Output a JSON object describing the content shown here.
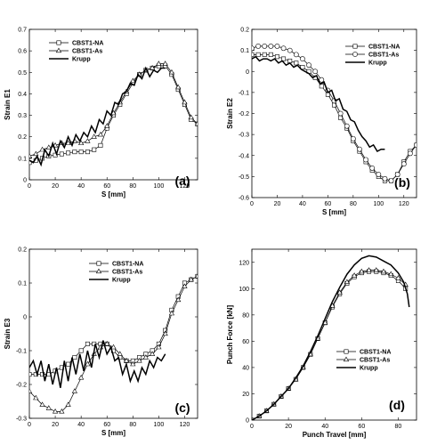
{
  "chart_data": [
    {
      "type": "line",
      "panel_label": "(a)",
      "xlabel": "S [mm]",
      "ylabel": "Strain E1",
      "xlim": [
        0,
        130
      ],
      "ylim": [
        0,
        0.7
      ],
      "xticks": [
        0,
        20,
        40,
        60,
        80,
        100,
        120
      ],
      "yticks": [
        0,
        0.1,
        0.2,
        0.3,
        0.4,
        0.5,
        0.6,
        0.7
      ],
      "ytick_labels": [
        "0",
        "0.1",
        "0.2",
        "0.3",
        "0.4",
        "0.5",
        "0.6",
        "0.7"
      ],
      "legend_position": "top-left",
      "series": [
        {
          "name": "CBST1-NA",
          "marker": "square",
          "x": [
            0,
            5,
            10,
            15,
            20,
            25,
            30,
            35,
            40,
            45,
            50,
            55,
            60,
            65,
            70,
            75,
            80,
            85,
            90,
            95,
            100,
            105,
            110,
            115,
            120,
            125,
            130
          ],
          "y": [
            0.08,
            0.09,
            0.1,
            0.11,
            0.115,
            0.12,
            0.125,
            0.13,
            0.13,
            0.13,
            0.14,
            0.16,
            0.24,
            0.3,
            0.35,
            0.4,
            0.45,
            0.49,
            0.51,
            0.52,
            0.53,
            0.53,
            0.49,
            0.42,
            0.35,
            0.28,
            0.26
          ]
        },
        {
          "name": "CBST1-As",
          "marker": "triangle",
          "x": [
            0,
            5,
            10,
            15,
            20,
            25,
            30,
            35,
            40,
            45,
            50,
            55,
            60,
            65,
            70,
            75,
            80,
            85,
            90,
            95,
            100,
            105,
            110,
            115,
            120,
            125,
            130
          ],
          "y": [
            0.11,
            0.12,
            0.14,
            0.15,
            0.16,
            0.17,
            0.17,
            0.18,
            0.17,
            0.18,
            0.2,
            0.21,
            0.25,
            0.31,
            0.36,
            0.41,
            0.46,
            0.49,
            0.51,
            0.52,
            0.54,
            0.54,
            0.5,
            0.43,
            0.36,
            0.29,
            0.26
          ]
        },
        {
          "name": "Krupp",
          "marker": "none",
          "x": [
            0,
            3,
            6,
            9,
            12,
            15,
            18,
            21,
            24,
            27,
            30,
            33,
            36,
            39,
            42,
            45,
            48,
            51,
            54,
            57,
            60,
            63,
            66,
            69,
            72,
            75,
            78,
            81,
            84,
            87,
            90,
            93,
            96,
            99,
            102,
            105
          ],
          "y": [
            0.09,
            0.08,
            0.11,
            0.07,
            0.14,
            0.11,
            0.17,
            0.12,
            0.18,
            0.15,
            0.2,
            0.16,
            0.21,
            0.18,
            0.22,
            0.2,
            0.25,
            0.22,
            0.28,
            0.26,
            0.32,
            0.3,
            0.36,
            0.35,
            0.4,
            0.41,
            0.45,
            0.44,
            0.49,
            0.47,
            0.52,
            0.48,
            0.51,
            0.5,
            0.52,
            0.52
          ]
        }
      ]
    },
    {
      "type": "line",
      "panel_label": "(b)",
      "xlabel": "S [mm]",
      "ylabel": "Strain E2",
      "xlim": [
        0,
        130
      ],
      "ylim": [
        -0.6,
        0.2
      ],
      "xticks": [
        0,
        20,
        40,
        60,
        80,
        100,
        120
      ],
      "yticks": [
        -0.6,
        -0.5,
        -0.4,
        -0.3,
        -0.2,
        -0.1,
        0,
        0.1,
        0.2
      ],
      "ytick_labels": [
        "-0.6",
        "-0.5",
        "-0.4",
        "-0.3",
        "-0.2",
        "-0.1",
        "0",
        "0.1",
        "0.2"
      ],
      "legend_position": "top-right",
      "series": [
        {
          "name": "CBST1-NA",
          "marker": "square",
          "x": [
            0,
            5,
            10,
            15,
            20,
            25,
            30,
            35,
            40,
            45,
            50,
            55,
            60,
            65,
            70,
            75,
            80,
            85,
            90,
            95,
            100,
            105,
            110,
            115,
            120,
            125,
            130
          ],
          "y": [
            0.08,
            0.08,
            0.08,
            0.08,
            0.07,
            0.06,
            0.05,
            0.04,
            0.02,
            0.0,
            -0.03,
            -0.07,
            -0.11,
            -0.16,
            -0.22,
            -0.27,
            -0.33,
            -0.38,
            -0.43,
            -0.47,
            -0.5,
            -0.52,
            -0.52,
            -0.49,
            -0.43,
            -0.38,
            -0.35
          ]
        },
        {
          "name": "CBST1-As",
          "marker": "circle",
          "x": [
            0,
            5,
            10,
            15,
            20,
            25,
            30,
            35,
            40,
            45,
            50,
            55,
            60,
            65,
            70,
            75,
            80,
            85,
            90,
            95,
            100,
            105,
            110,
            115,
            120,
            125,
            130
          ],
          "y": [
            0.11,
            0.12,
            0.12,
            0.12,
            0.12,
            0.11,
            0.1,
            0.08,
            0.06,
            0.03,
            0.0,
            -0.04,
            -0.09,
            -0.14,
            -0.2,
            -0.26,
            -0.32,
            -0.37,
            -0.42,
            -0.46,
            -0.49,
            -0.51,
            -0.52,
            -0.49,
            -0.44,
            -0.39,
            -0.35
          ]
        },
        {
          "name": "Krupp",
          "marker": "none",
          "x": [
            0,
            3,
            6,
            9,
            12,
            15,
            18,
            21,
            24,
            27,
            30,
            33,
            36,
            39,
            42,
            45,
            48,
            51,
            54,
            57,
            60,
            63,
            66,
            69,
            72,
            75,
            78,
            81,
            84,
            87,
            90,
            93,
            96,
            99,
            102,
            105
          ],
          "y": [
            0.06,
            0.07,
            0.05,
            0.06,
            0.06,
            0.05,
            0.06,
            0.04,
            0.05,
            0.03,
            0.04,
            0.02,
            0.03,
            0.01,
            0.0,
            -0.01,
            -0.03,
            -0.02,
            -0.06,
            -0.05,
            -0.1,
            -0.09,
            -0.14,
            -0.13,
            -0.18,
            -0.19,
            -0.23,
            -0.24,
            -0.28,
            -0.31,
            -0.33,
            -0.36,
            -0.35,
            -0.38,
            -0.37,
            -0.37
          ]
        }
      ]
    },
    {
      "type": "line",
      "panel_label": "(c)",
      "xlabel": "S [mm]",
      "ylabel": "Strain E3",
      "xlim": [
        0,
        130
      ],
      "ylim": [
        -0.3,
        0.2
      ],
      "xticks": [
        0,
        20,
        40,
        60,
        80,
        100,
        120
      ],
      "yticks": [
        -0.3,
        -0.2,
        -0.1,
        0,
        0.1,
        0.2
      ],
      "ytick_labels": [
        "-0.3",
        "-0.2",
        "-0.1",
        "0",
        "0.1",
        "0.2"
      ],
      "legend_position": "top-right",
      "series": [
        {
          "name": "CBST1-NA",
          "marker": "square",
          "x": [
            0,
            5,
            10,
            15,
            20,
            25,
            30,
            35,
            40,
            45,
            50,
            55,
            60,
            65,
            70,
            75,
            80,
            85,
            90,
            95,
            100,
            105,
            110,
            115,
            120,
            125,
            130
          ],
          "y": [
            -0.17,
            -0.17,
            -0.17,
            -0.17,
            -0.16,
            -0.15,
            -0.14,
            -0.12,
            -0.1,
            -0.08,
            -0.08,
            -0.08,
            -0.08,
            -0.1,
            -0.12,
            -0.13,
            -0.13,
            -0.12,
            -0.11,
            -0.1,
            -0.08,
            -0.04,
            0.02,
            0.06,
            0.1,
            0.11,
            0.12
          ]
        },
        {
          "name": "CBST1-As",
          "marker": "triangle",
          "x": [
            0,
            5,
            10,
            15,
            20,
            25,
            30,
            35,
            40,
            45,
            50,
            55,
            60,
            65,
            70,
            75,
            80,
            85,
            90,
            95,
            100,
            105,
            110,
            115,
            120,
            125,
            130
          ],
          "y": [
            -0.22,
            -0.24,
            -0.26,
            -0.27,
            -0.28,
            -0.28,
            -0.26,
            -0.22,
            -0.18,
            -0.14,
            -0.11,
            -0.09,
            -0.08,
            -0.09,
            -0.11,
            -0.13,
            -0.14,
            -0.13,
            -0.12,
            -0.11,
            -0.09,
            -0.05,
            0.01,
            0.05,
            0.09,
            0.11,
            0.12
          ]
        },
        {
          "name": "Krupp",
          "marker": "none",
          "x": [
            0,
            3,
            6,
            9,
            12,
            15,
            18,
            21,
            24,
            27,
            30,
            33,
            36,
            39,
            42,
            45,
            48,
            51,
            54,
            57,
            60,
            63,
            66,
            69,
            72,
            75,
            78,
            81,
            84,
            87,
            90,
            93,
            96,
            99,
            102,
            105
          ],
          "y": [
            -0.15,
            -0.13,
            -0.17,
            -0.13,
            -0.19,
            -0.14,
            -0.2,
            -0.15,
            -0.21,
            -0.13,
            -0.19,
            -0.12,
            -0.17,
            -0.11,
            -0.16,
            -0.1,
            -0.15,
            -0.08,
            -0.12,
            -0.07,
            -0.11,
            -0.09,
            -0.13,
            -0.12,
            -0.17,
            -0.14,
            -0.19,
            -0.16,
            -0.19,
            -0.15,
            -0.17,
            -0.13,
            -0.15,
            -0.12,
            -0.13,
            -0.11
          ]
        }
      ]
    },
    {
      "type": "line",
      "panel_label": "(d)",
      "xlabel": "Punch Travel [mm]",
      "ylabel": "Punch Force [kN]",
      "xlim": [
        0,
        90
      ],
      "ylim": [
        0,
        130
      ],
      "xticks": [
        0,
        20,
        40,
        60,
        80
      ],
      "yticks": [
        0,
        20,
        40,
        60,
        80,
        100,
        120
      ],
      "ytick_labels": [
        "0",
        "20",
        "40",
        "60",
        "80",
        "100",
        "120"
      ],
      "legend_position": "bottom-right",
      "series": [
        {
          "name": "CBST1-NA",
          "marker": "square",
          "x": [
            0,
            4,
            8,
            12,
            16,
            20,
            24,
            28,
            32,
            36,
            40,
            44,
            48,
            52,
            56,
            60,
            64,
            68,
            72,
            76,
            80,
            84
          ],
          "y": [
            0,
            3,
            7,
            12,
            18,
            24,
            31,
            40,
            50,
            62,
            74,
            86,
            96,
            104,
            109,
            112,
            113,
            113,
            112,
            110,
            106,
            100
          ]
        },
        {
          "name": "CBST1-As",
          "marker": "triangle",
          "x": [
            0,
            4,
            8,
            12,
            16,
            20,
            24,
            28,
            32,
            36,
            40,
            44,
            48,
            52,
            56,
            60,
            64,
            68,
            72,
            76,
            80,
            84
          ],
          "y": [
            0,
            3,
            7,
            12,
            18,
            24,
            31,
            40,
            50,
            62,
            74,
            87,
            97,
            105,
            110,
            113,
            114,
            114,
            113,
            111,
            108,
            103
          ]
        },
        {
          "name": "Krupp",
          "marker": "none",
          "x": [
            0,
            4,
            8,
            12,
            16,
            20,
            24,
            28,
            32,
            36,
            40,
            44,
            48,
            52,
            56,
            60,
            64,
            68,
            72,
            76,
            80,
            83,
            85,
            86
          ],
          "y": [
            0,
            3,
            7,
            12,
            18,
            24,
            32,
            41,
            52,
            64,
            77,
            90,
            101,
            111,
            118,
            123,
            125,
            124,
            121,
            118,
            112,
            105,
            96,
            86
          ]
        }
      ]
    }
  ]
}
